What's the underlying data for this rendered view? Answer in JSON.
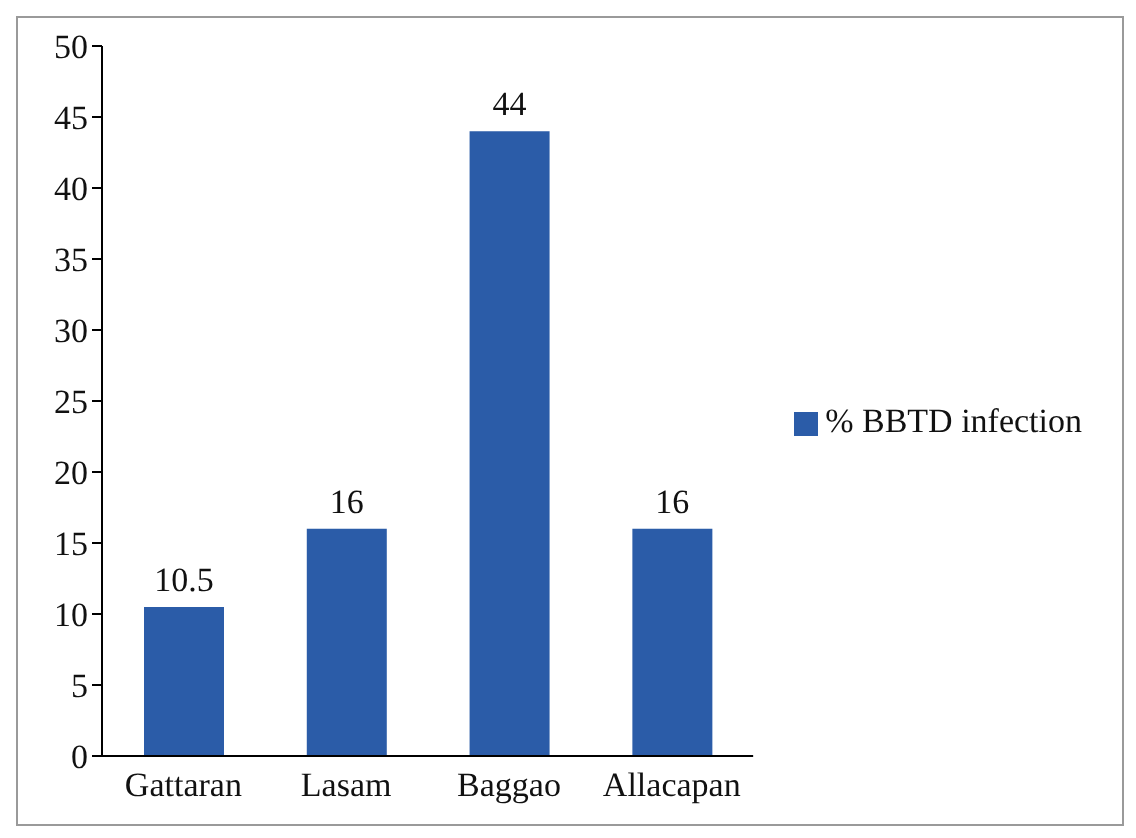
{
  "chart_data": {
    "type": "bar",
    "categories": [
      "Gattaran",
      "Lasam",
      "Baggao",
      "Allacapan"
    ],
    "series": [
      {
        "name": "% BBTD infection",
        "color": "#2b5ca8",
        "values": [
          10.5,
          16,
          44,
          16
        ]
      }
    ],
    "ylim": [
      0,
      50
    ],
    "yticks": [
      0,
      5,
      10,
      15,
      20,
      25,
      30,
      35,
      40,
      45,
      50
    ],
    "data_labels": true,
    "legend": "right",
    "grid": false
  }
}
